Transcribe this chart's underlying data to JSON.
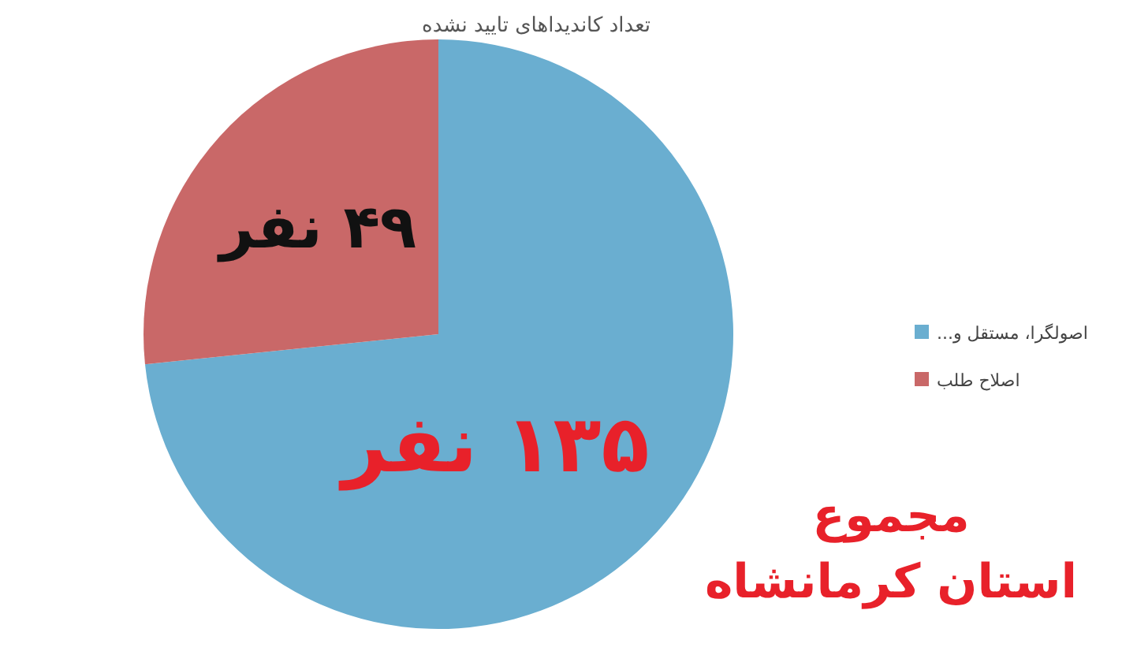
{
  "chart_data": {
    "type": "pie",
    "title": "تعداد کاندیداهای تایید نشده",
    "categories": [
      "اصولگرا، مستقل و...",
      "اصلاح طلب"
    ],
    "values": [
      135,
      49
    ],
    "colors": [
      "#6aaed0",
      "#c96868"
    ],
    "value_labels": [
      "۱۳۵ نفر",
      "۴۹ نفر"
    ],
    "legend": "right",
    "annotations": [
      "مجموع",
      "استان کرمانشاه"
    ]
  }
}
